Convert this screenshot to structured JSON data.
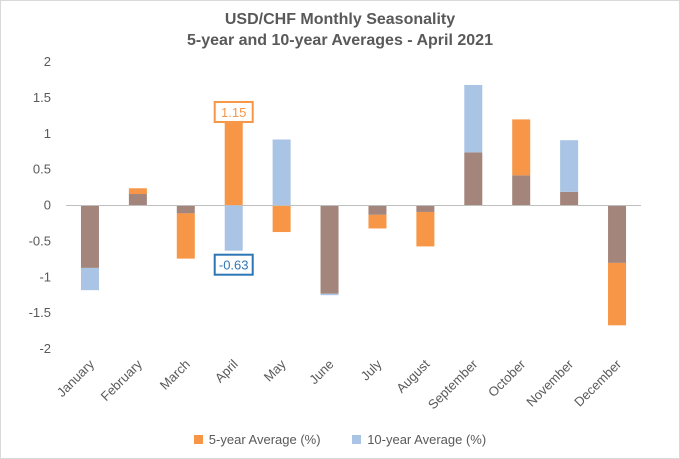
{
  "chart_data": {
    "type": "bar",
    "title_line1": "USD/CHF Monthly Seasonality",
    "title_line2": "5-year and 10-year Averages - April 2021",
    "xlabel": "",
    "ylabel": "",
    "ylim": [
      -2,
      2
    ],
    "yticks": [
      2,
      1.5,
      1,
      0.5,
      0,
      -0.5,
      -1,
      -1.5,
      -2
    ],
    "ytick_labels": [
      "2",
      "1.5",
      "1",
      "0.5",
      "0",
      "-0.5",
      "-1",
      "-1.5",
      "-2"
    ],
    "grid": false,
    "legend_position": "bottom",
    "categories": [
      "January",
      "February",
      "March",
      "April",
      "May",
      "June",
      "July",
      "August",
      "September",
      "October",
      "November",
      "December"
    ],
    "series": [
      {
        "name": "5-year Average (%)",
        "color": "#f79646",
        "values": [
          -0.87,
          0.24,
          -0.74,
          1.15,
          -0.37,
          -1.23,
          -0.32,
          -0.57,
          0.74,
          1.2,
          0.19,
          -1.67
        ]
      },
      {
        "name": "10-year Average (%)",
        "color": "#a9c4e4",
        "values": [
          -1.18,
          0.16,
          -0.11,
          -0.63,
          0.92,
          -1.25,
          -0.13,
          -0.09,
          1.68,
          0.42,
          0.91,
          -0.8
        ]
      }
    ],
    "overlap_color": "#a3857c",
    "annotations": [
      {
        "text": "1.15",
        "month": "April",
        "series": "5-year Average (%)",
        "color": "#f79646"
      },
      {
        "text": "-0.63",
        "month": "April",
        "series": "10-year Average (%)",
        "color": "#2e75b6"
      }
    ]
  }
}
